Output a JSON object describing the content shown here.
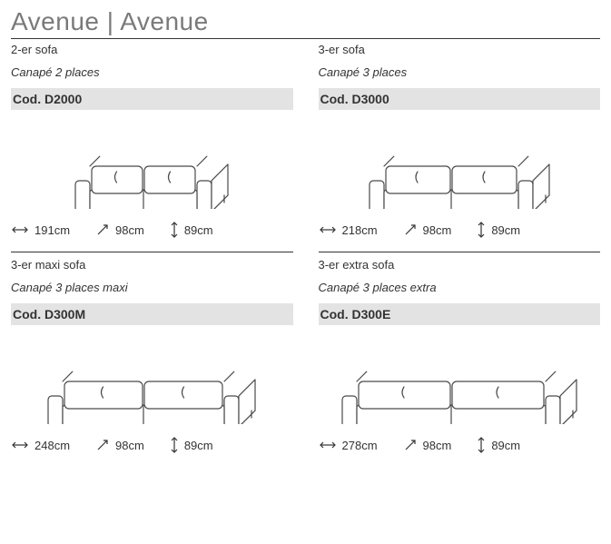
{
  "title": "Avenue | Avenue",
  "colors": {
    "text": "#333333",
    "title": "#7a7a7a",
    "codeBg": "#e3e3e3",
    "divider": "#333333",
    "bg": "#ffffff",
    "sofaStroke": "#4a4a4a"
  },
  "products": [
    {
      "nameEn": "2-er sofa",
      "nameFr": "Canapé 2 places",
      "code": "Cod. D2000",
      "sofaWidth": 150,
      "dims": {
        "width": "191cm",
        "depth": "98cm",
        "height": "89cm"
      }
    },
    {
      "nameEn": "3-er sofa",
      "nameFr": "Canapé 3 places",
      "code": "Cod. D3000",
      "sofaWidth": 180,
      "dims": {
        "width": "218cm",
        "depth": "98cm",
        "height": "89cm"
      }
    },
    {
      "nameEn": "3-er maxi sofa",
      "nameFr": "Canapé 3 places maxi",
      "code": "Cod. D300M",
      "sofaWidth": 210,
      "dims": {
        "width": "248cm",
        "depth": "98cm",
        "height": "89cm"
      }
    },
    {
      "nameEn": "3-er extra sofa",
      "nameFr": "Canapé 3 places extra",
      "code": "Cod. D300E",
      "sofaWidth": 240,
      "dims": {
        "width": "278cm",
        "depth": "98cm",
        "height": "89cm"
      }
    }
  ]
}
